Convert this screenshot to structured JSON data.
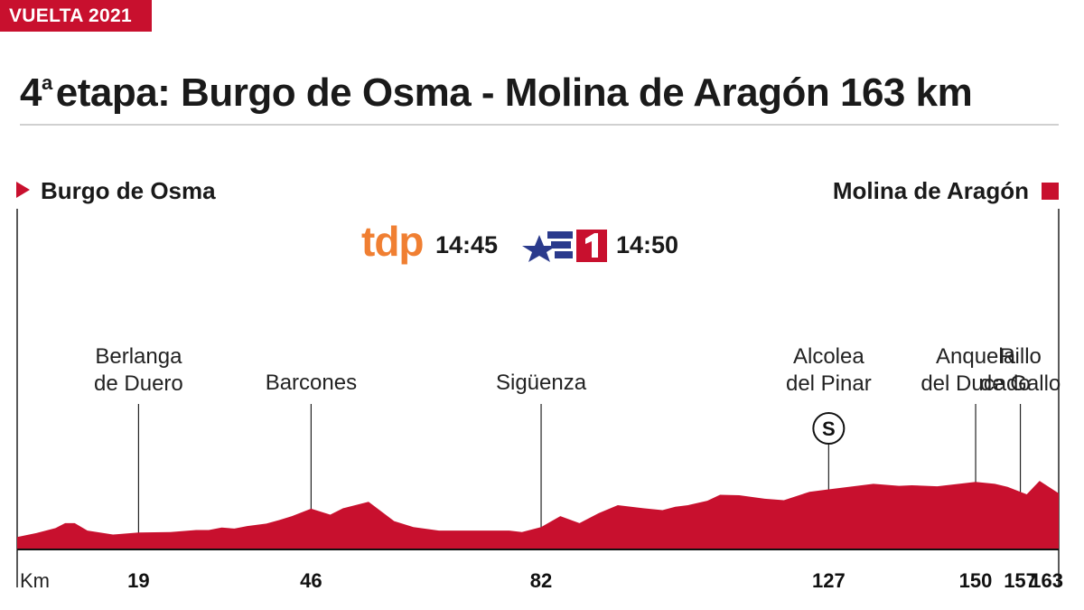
{
  "tag": "VUELTA 2021",
  "title": {
    "ordinal": "4",
    "ordinal_suffix": "a",
    "text": "etapa: Burgo de Osma - Molina de Aragón  163 km"
  },
  "start_label": "Burgo de Osma",
  "finish_label": "Molina de Aragón",
  "broadcast": {
    "channel1_logo": "tdp",
    "channel1_time": "14:45",
    "channel2_logo": "la1-icon",
    "channel2_time": "14:50"
  },
  "colors": {
    "accent": "#c8102e",
    "tdp": "#f07f32",
    "la1_blue": "#2a3a8c"
  },
  "chart_data": {
    "type": "area",
    "title": "4ª etapa: Burgo de Osma - Molina de Aragón  163 km",
    "xlabel": "Km",
    "xlim": [
      0,
      163
    ],
    "series": [
      {
        "x": [
          0,
          3,
          6,
          7.5,
          9,
          11,
          15,
          19,
          24,
          28,
          30,
          32,
          34,
          36,
          39,
          41,
          43,
          46,
          49,
          51,
          55,
          59,
          62,
          66,
          70,
          74,
          77,
          79,
          82,
          85,
          88,
          91,
          94,
          98,
          101,
          103,
          105,
          108,
          110,
          113,
          117,
          120,
          124,
          127,
          134,
          138,
          140,
          144,
          150,
          153,
          155,
          158,
          160,
          163
        ],
        "y": [
          2.5,
          3.3,
          4.3,
          5.3,
          5.3,
          3.8,
          3.0,
          3.4,
          3.5,
          3.9,
          3.9,
          4.4,
          4.2,
          4.7,
          5.2,
          5.9,
          6.7,
          8.2,
          7.0,
          8.3,
          9.6,
          5.7,
          4.5,
          3.8,
          3.8,
          3.8,
          3.8,
          3.5,
          4.5,
          6.7,
          5.3,
          7.3,
          8.9,
          8.3,
          7.9,
          8.6,
          8.9,
          9.8,
          11.0,
          10.9,
          10.2,
          9.9,
          11.6,
          12.1,
          13.2,
          12.8,
          12.9,
          12.7,
          13.6,
          13.2,
          12.6,
          11.1,
          13.8,
          11.3
        ]
      }
    ],
    "waypoints": [
      {
        "km": 19,
        "name": "Berlanga\nde Duero"
      },
      {
        "km": 46,
        "name": "Barcones"
      },
      {
        "km": 82,
        "name": "Sigüenza"
      },
      {
        "km": 127,
        "name": "Alcolea\ndel Pinar",
        "marker": "S"
      },
      {
        "km": 150,
        "name": "Anquela\ndel Ducado"
      },
      {
        "km": 157,
        "name": "Rillo\nde Gallo"
      }
    ],
    "x_ticks": [
      "19",
      "46",
      "82",
      "127",
      "150",
      "157",
      "163"
    ]
  }
}
